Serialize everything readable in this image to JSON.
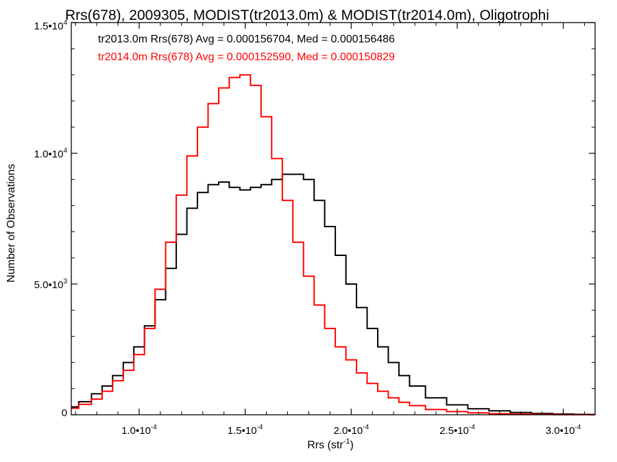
{
  "chart_data": {
    "type": "line",
    "title": "Rrs(678), 2009305, MODIST(tr2013.0m) & MODIST(tr2014.0m), Oligotrophi",
    "xlabel_main": "Rrs (str",
    "xlabel_sup": "-1",
    "xlabel_end": ")",
    "ylabel": "Number of Observations",
    "xlim": [
      6.8e-05,
      0.000315
    ],
    "ylim": [
      0,
      15000
    ],
    "x_ticks": [
      {
        "value": 0.0001,
        "mant": "1.0•10",
        "exp": "-4"
      },
      {
        "value": 0.00015,
        "mant": "1.5•10",
        "exp": "-4"
      },
      {
        "value": 0.0002,
        "mant": "2.0•10",
        "exp": "-4"
      },
      {
        "value": 0.00025,
        "mant": "2.5•10",
        "exp": "-4"
      },
      {
        "value": 0.0003,
        "mant": "3.0•10",
        "exp": "-4"
      }
    ],
    "y_ticks": [
      {
        "value": 0,
        "mant": "0",
        "exp": ""
      },
      {
        "value": 5000,
        "mant": "5.0•10",
        "exp": "3"
      },
      {
        "value": 10000,
        "mant": "1.0•10",
        "exp": "4"
      },
      {
        "value": 15000,
        "mant": "1.5•10",
        "exp": "4"
      }
    ],
    "legend": [
      {
        "text": "tr2013.0m Rrs(678) Avg = 0.000156704, Med = 0.000156486",
        "color": "#000000"
      },
      {
        "text": "tr2014.0m Rrs(678) Avg = 0.000152590, Med = 0.000150829",
        "color": "#ff0000"
      }
    ],
    "series": [
      {
        "color": "#000000",
        "x": [
          6.8e-05,
          7.5e-05,
          8e-05,
          8.5e-05,
          9e-05,
          9.5e-05,
          0.0001,
          0.000105,
          0.00011,
          0.000115,
          0.00012,
          0.000125,
          0.00013,
          0.000135,
          0.00014,
          0.000145,
          0.00015,
          0.000155,
          0.00016,
          0.000165,
          0.00017,
          0.000175,
          0.00018,
          0.000185,
          0.00019,
          0.000195,
          0.0002,
          0.000205,
          0.00021,
          0.000215,
          0.00022,
          0.000225,
          0.00023,
          0.00024,
          0.00025,
          0.00026,
          0.00027,
          0.00028,
          0.00029,
          0.0003,
          0.00031,
          0.000315
        ],
        "y": [
          300,
          500,
          800,
          1100,
          1500,
          2000,
          2600,
          3400,
          4400,
          5600,
          6900,
          7900,
          8500,
          8800,
          8900,
          8700,
          8600,
          8700,
          8800,
          9000,
          9200,
          9200,
          9000,
          8200,
          7200,
          6100,
          5000,
          4100,
          3300,
          2600,
          2000,
          1500,
          1100,
          650,
          380,
          230,
          150,
          90,
          50,
          30,
          15,
          10
        ]
      },
      {
        "color": "#ff0000",
        "x": [
          6.8e-05,
          7.5e-05,
          8e-05,
          8.5e-05,
          9e-05,
          9.5e-05,
          0.0001,
          0.000105,
          0.00011,
          0.000115,
          0.00012,
          0.000125,
          0.00013,
          0.000135,
          0.00014,
          0.000145,
          0.00015,
          0.000155,
          0.00016,
          0.000165,
          0.00017,
          0.000175,
          0.00018,
          0.000185,
          0.00019,
          0.000195,
          0.0002,
          0.000205,
          0.00021,
          0.000215,
          0.00022,
          0.000225,
          0.00023,
          0.00024,
          0.00025,
          0.00026,
          0.00027,
          0.00028,
          0.00029,
          0.0003,
          0.00031,
          0.000315
        ],
        "y": [
          250,
          400,
          600,
          900,
          1300,
          1700,
          2300,
          3300,
          4800,
          6600,
          8400,
          9900,
          11000,
          11900,
          12500,
          12900,
          13000,
          12600,
          11400,
          9800,
          8200,
          6600,
          5300,
          4200,
          3300,
          2600,
          2100,
          1600,
          1200,
          900,
          650,
          480,
          350,
          200,
          120,
          70,
          40,
          25,
          15,
          8,
          5,
          3
        ]
      }
    ]
  }
}
